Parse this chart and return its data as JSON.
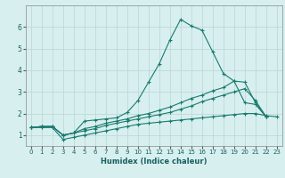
{
  "xlabel": "Humidex (Indice chaleur)",
  "bg_color": "#d7f0ef",
  "grid_color": "#c0d8d8",
  "line_color": "#1a7a6e",
  "xlim": [
    -0.5,
    23.5
  ],
  "ylim": [
    0.5,
    7.0
  ],
  "xticks": [
    0,
    1,
    2,
    3,
    4,
    5,
    6,
    7,
    8,
    9,
    10,
    11,
    12,
    13,
    14,
    15,
    16,
    17,
    18,
    19,
    20,
    21,
    22,
    23
  ],
  "yticks": [
    1,
    2,
    3,
    4,
    5,
    6
  ],
  "series": [
    {
      "x": [
        0,
        1,
        2,
        3,
        4,
        5,
        6,
        7,
        8,
        9,
        10,
        11,
        12,
        13,
        14,
        15,
        16,
        17,
        18,
        19,
        20,
        21,
        22,
        23
      ],
      "y": [
        1.35,
        1.4,
        1.4,
        1.0,
        1.1,
        1.65,
        1.7,
        1.75,
        1.8,
        2.05,
        2.6,
        3.45,
        4.3,
        5.4,
        6.35,
        6.05,
        5.85,
        4.85,
        3.85,
        3.5,
        2.5,
        2.42,
        1.85,
        null
      ]
    },
    {
      "x": [
        0,
        1,
        2,
        3,
        4,
        5,
        6,
        7,
        8,
        9,
        10,
        11,
        12,
        13,
        14,
        15,
        16,
        17,
        18,
        19,
        20,
        21,
        22,
        23
      ],
      "y": [
        1.35,
        1.4,
        1.4,
        1.0,
        1.1,
        1.3,
        1.4,
        1.55,
        1.65,
        1.75,
        1.9,
        2.0,
        2.15,
        2.3,
        2.5,
        2.7,
        2.85,
        3.05,
        3.2,
        3.5,
        3.45,
        2.5,
        1.85,
        null
      ]
    },
    {
      "x": [
        0,
        1,
        2,
        3,
        4,
        5,
        6,
        7,
        8,
        9,
        10,
        11,
        12,
        13,
        14,
        15,
        16,
        17,
        18,
        19,
        20,
        21,
        22,
        23
      ],
      "y": [
        1.35,
        1.4,
        1.4,
        1.0,
        1.1,
        1.2,
        1.3,
        1.45,
        1.55,
        1.65,
        1.75,
        1.85,
        1.95,
        2.05,
        2.2,
        2.35,
        2.55,
        2.7,
        2.85,
        3.0,
        3.15,
        2.6,
        1.85,
        null
      ]
    },
    {
      "x": [
        0,
        1,
        2,
        3,
        4,
        5,
        6,
        7,
        8,
        9,
        10,
        11,
        12,
        13,
        14,
        15,
        16,
        17,
        18,
        19,
        20,
        21,
        22,
        23
      ],
      "y": [
        1.35,
        1.35,
        1.35,
        0.8,
        0.9,
        1.0,
        1.1,
        1.2,
        1.3,
        1.4,
        1.5,
        1.55,
        1.6,
        1.65,
        1.7,
        1.75,
        1.8,
        1.85,
        1.9,
        1.95,
        2.0,
        2.0,
        1.9,
        1.85
      ]
    }
  ]
}
